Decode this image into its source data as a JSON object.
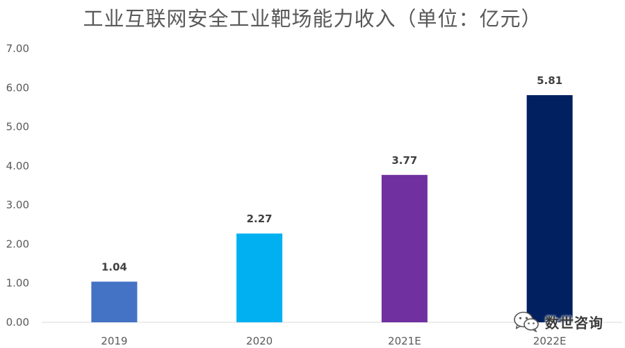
{
  "chart_data": {
    "type": "bar",
    "title": "工业互联网安全工业靶场能力收入（单位：亿元）",
    "categories": [
      "2019",
      "2020",
      "2021E",
      "2022E"
    ],
    "values": [
      1.04,
      2.27,
      3.77,
      5.81
    ],
    "data_labels": [
      "1.04",
      "2.27",
      "3.77",
      "5.81"
    ],
    "colors": [
      "#4472C4",
      "#00B0F0",
      "#7030A0",
      "#002060"
    ],
    "y_ticks": [
      "0.00",
      "1.00",
      "2.00",
      "3.00",
      "4.00",
      "5.00",
      "6.00",
      "7.00"
    ],
    "ylim": [
      0,
      7
    ],
    "grid": false,
    "legend": "none"
  },
  "watermark": {
    "icon": "wechat-icon",
    "text": "数世咨询"
  }
}
